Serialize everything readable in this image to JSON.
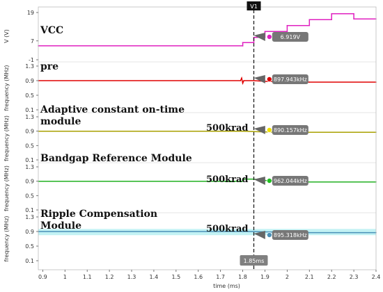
{
  "chart_data": {
    "type": "line",
    "cursor": {
      "name": "V1",
      "x": 1.85,
      "label": "1.85ms"
    },
    "x_axis": {
      "label": "time (ms)",
      "range": [
        0.88,
        2.4
      ],
      "ticks": [
        0.9,
        1.0,
        1.1,
        1.2,
        1.3,
        1.4,
        1.5,
        1.6,
        1.7,
        1.8,
        1.9,
        2.0,
        2.1,
        2.2,
        2.3,
        2.4
      ]
    },
    "panels": [
      {
        "title": "VCC",
        "ylabel": "V (V)",
        "ylim": [
          -1.0,
          19
        ],
        "yticks": [
          19,
          7.0,
          -1.0
        ],
        "color": "#e020c0",
        "callout": "6.919V",
        "callout_dot": "#e020c0",
        "series": {
          "x": [
            0.88,
            1.8,
            1.8,
            1.85,
            1.85,
            1.9,
            1.9,
            2.0,
            2.0,
            2.1,
            2.1,
            2.2,
            2.2,
            2.3,
            2.3,
            2.4
          ],
          "y": [
            4.9,
            4.9,
            6.3,
            6.3,
            8.5,
            8.5,
            11.0,
            11.0,
            13.5,
            13.5,
            16.0,
            16.0,
            18.5,
            18.5,
            16.3,
            16.3
          ]
        }
      },
      {
        "title": "pre",
        "ylabel": "frequency (MHz)",
        "ylim": [
          0.1,
          1.3
        ],
        "yticks": [
          1.3,
          0.9,
          0.5,
          0.1
        ],
        "color": "#e00000",
        "callout": "897.943kHz",
        "callout_dot": "#e00000",
        "series": {
          "x": [
            0.88,
            1.79,
            1.795,
            1.8,
            1.805,
            1.85,
            1.9,
            2.1,
            2.4
          ],
          "y": [
            0.9,
            0.9,
            0.97,
            0.83,
            0.9,
            0.9,
            0.88,
            0.86,
            0.86
          ]
        }
      },
      {
        "title": "Adaptive constant on-time module",
        "ylabel": "frequency (MHz)",
        "ylim": [
          0.1,
          1.3
        ],
        "yticks": [
          1.3,
          0.9,
          0.5,
          0.1
        ],
        "color": "#a8a000",
        "callout": "890.157kHz",
        "callout_dot": "#f0e000",
        "annotation": "500krad",
        "series": {
          "x": [
            0.88,
            1.8,
            1.85,
            1.9,
            2.0,
            2.4
          ],
          "y": [
            0.9,
            0.9,
            0.89,
            0.88,
            0.87,
            0.87
          ]
        }
      },
      {
        "title": "Bandgap Reference Module",
        "ylabel": "frequency (MHz)",
        "ylim": [
          0.1,
          1.3
        ],
        "yticks": [
          1.3,
          0.9,
          0.5,
          0.1
        ],
        "color": "#20b020",
        "callout": "962.044kHz",
        "callout_dot": "#20c020",
        "annotation": "500krad",
        "series": {
          "x": [
            0.88,
            1.8,
            1.8,
            1.85,
            1.9,
            2.1,
            2.4
          ],
          "y": [
            0.9,
            0.9,
            0.96,
            0.96,
            0.92,
            0.88,
            0.88
          ]
        }
      },
      {
        "title": "Ripple Compensation Module",
        "ylabel": "frequency (MHz)",
        "ylim": [
          0.1,
          1.3
        ],
        "yticks": [
          1.3,
          0.9,
          0.5,
          0.1
        ],
        "color": "#4a90b8",
        "band_color": "#a8ecf0",
        "callout": "895.318kHz",
        "callout_dot": "#4a90b8",
        "annotation": "500krad",
        "series": {
          "x": [
            0.88,
            1.8,
            1.85,
            1.9,
            2.1,
            2.4
          ],
          "y": [
            0.9,
            0.9,
            0.9,
            0.89,
            0.87,
            0.87
          ]
        }
      }
    ]
  }
}
